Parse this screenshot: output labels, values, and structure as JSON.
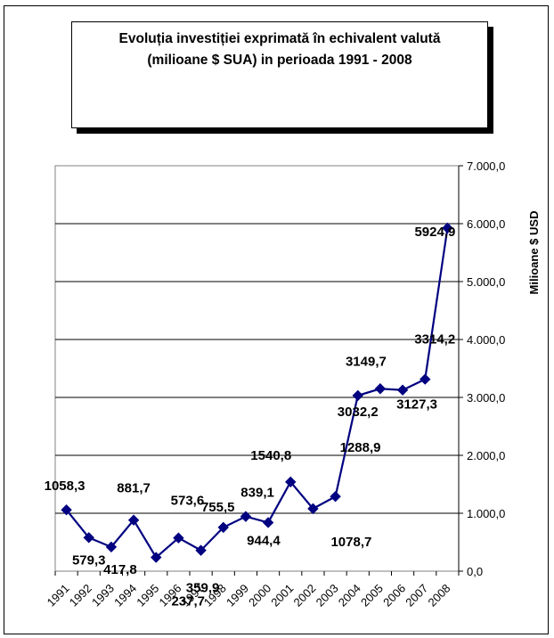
{
  "title": {
    "line1": "Evoluția investiției exprimată în echivalent valută",
    "line2": "(milioane $ SUA) in perioada 1991 - 2008"
  },
  "chart_data": {
    "type": "line",
    "title": "Evoluția investiției exprimată în echivalent valută (milioane $ SUA) in perioada 1991 - 2008",
    "xlabel": "",
    "ylabel": "Milioane $ USD",
    "ylim": [
      0,
      7000
    ],
    "y_axis_side": "right",
    "grid": "horizontal",
    "legend": "none",
    "line_color": "#000080",
    "marker": "diamond",
    "x": [
      "1991",
      "1992",
      "1993",
      "1994",
      "1995",
      "1996",
      "1997",
      "1998",
      "1999",
      "2000",
      "2001",
      "2002",
      "2003",
      "2004",
      "2005",
      "2006",
      "2007",
      "2008"
    ],
    "y_ticks": [
      "0,0",
      "1.000,0",
      "2.000,0",
      "3.000,0",
      "4.000,0",
      "5.000,0",
      "6.000,0",
      "7.000,0"
    ],
    "y_tick_values": [
      0,
      1000,
      2000,
      3000,
      4000,
      5000,
      6000,
      7000
    ],
    "values": [
      1058.3,
      579.3,
      417.8,
      881.7,
      237.7,
      573.6,
      359.9,
      755.5,
      944.4,
      839.1,
      1540.8,
      1078.7,
      1288.9,
      3032.2,
      3149.7,
      3127.3,
      3314.2,
      5924.9
    ],
    "data_labels": [
      {
        "text": "1058,3"
      },
      {
        "text": "579,3"
      },
      {
        "text": "417,8"
      },
      {
        "text": "881,7"
      },
      {
        "text": "237,7"
      },
      {
        "text": "573,6"
      },
      {
        "text": "359,9"
      },
      {
        "text": "755,5"
      },
      {
        "text": "944,4"
      },
      {
        "text": "839,1"
      },
      {
        "text": "1540,8"
      },
      {
        "text": "1078,7"
      },
      {
        "text": "1288,9"
      },
      {
        "text": "3032,2"
      },
      {
        "text": "3149,7"
      },
      {
        "text": "3127,3"
      },
      {
        "text": "3314,2"
      },
      {
        "text": "5924,9"
      }
    ]
  }
}
